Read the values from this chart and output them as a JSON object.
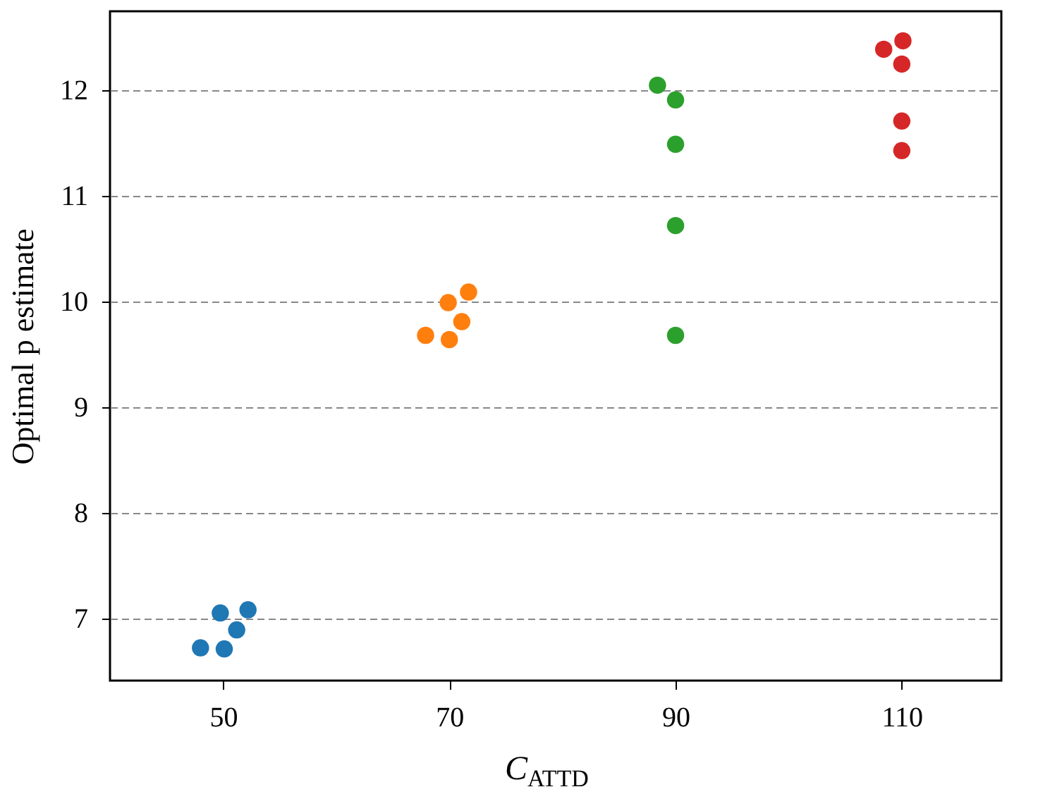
{
  "chart_data": {
    "type": "scatter",
    "xlabel": "C$_{ATTD}$",
    "ylabel": "Optimal p estimate",
    "xlim": [
      40,
      118.8
    ],
    "ylim": [
      6.41,
      12.75
    ],
    "xticks": [
      50,
      70,
      90,
      110
    ],
    "yticks": [
      7,
      8,
      9,
      10,
      11,
      12
    ],
    "grid": "y",
    "marker": "circle",
    "legend": false,
    "series": [
      {
        "color": "#1f77b4",
        "x": [
          48.0,
          49.75,
          50.1,
          51.2,
          52.2
        ],
        "values": [
          6.72,
          7.05,
          6.71,
          6.89,
          7.08
        ]
      },
      {
        "color": "#ff7f0e",
        "x": [
          67.9,
          69.9,
          70.0,
          71.1,
          71.7
        ],
        "values": [
          9.68,
          9.99,
          9.64,
          9.81,
          10.09
        ]
      },
      {
        "color": "#2ca02c",
        "x": [
          88.4,
          90.0,
          90.0,
          90.0,
          90.0
        ],
        "values": [
          12.05,
          11.91,
          11.49,
          10.72,
          9.68
        ]
      },
      {
        "color": "#d62728",
        "x": [
          108.4,
          110.0,
          110.1,
          110.0,
          110.0
        ],
        "values": [
          12.39,
          12.25,
          12.47,
          11.71,
          11.43
        ]
      }
    ]
  }
}
